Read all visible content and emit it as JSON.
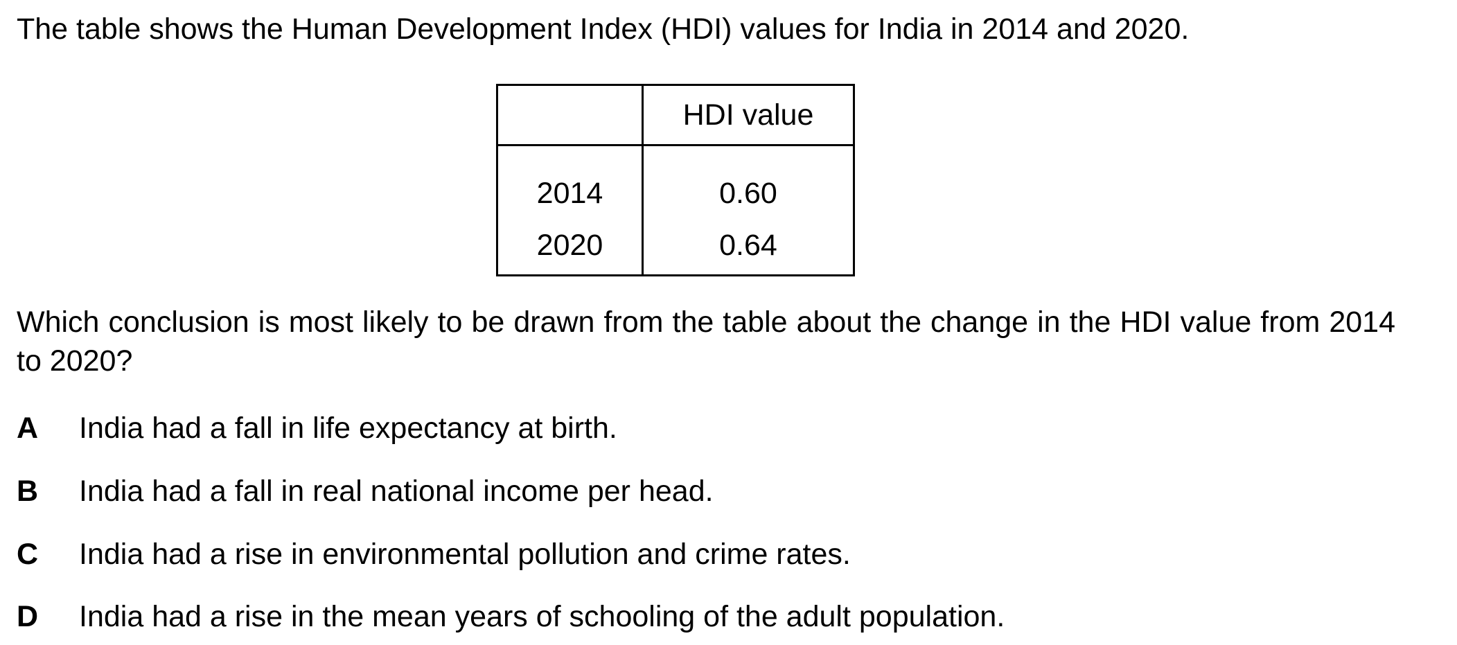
{
  "intro": "The table shows the Human Development Index (HDI) values for India in 2014 and 2020.",
  "table": {
    "header": [
      "",
      "HDI value"
    ],
    "rows": [
      {
        "year": "2014",
        "value": "0.60"
      },
      {
        "year": "2020",
        "value": "0.64"
      }
    ]
  },
  "question": "Which conclusion is most likely to be drawn from the table about the change in the HDI value from 2014 to 2020?",
  "options": [
    {
      "letter": "A",
      "text": "India had a fall in life expectancy at birth."
    },
    {
      "letter": "B",
      "text": "India had a fall in real national income per head."
    },
    {
      "letter": "C",
      "text": "India had a rise in environmental pollution and crime rates."
    },
    {
      "letter": "D",
      "text": "India had a rise in the mean years of schooling of the adult population."
    }
  ]
}
